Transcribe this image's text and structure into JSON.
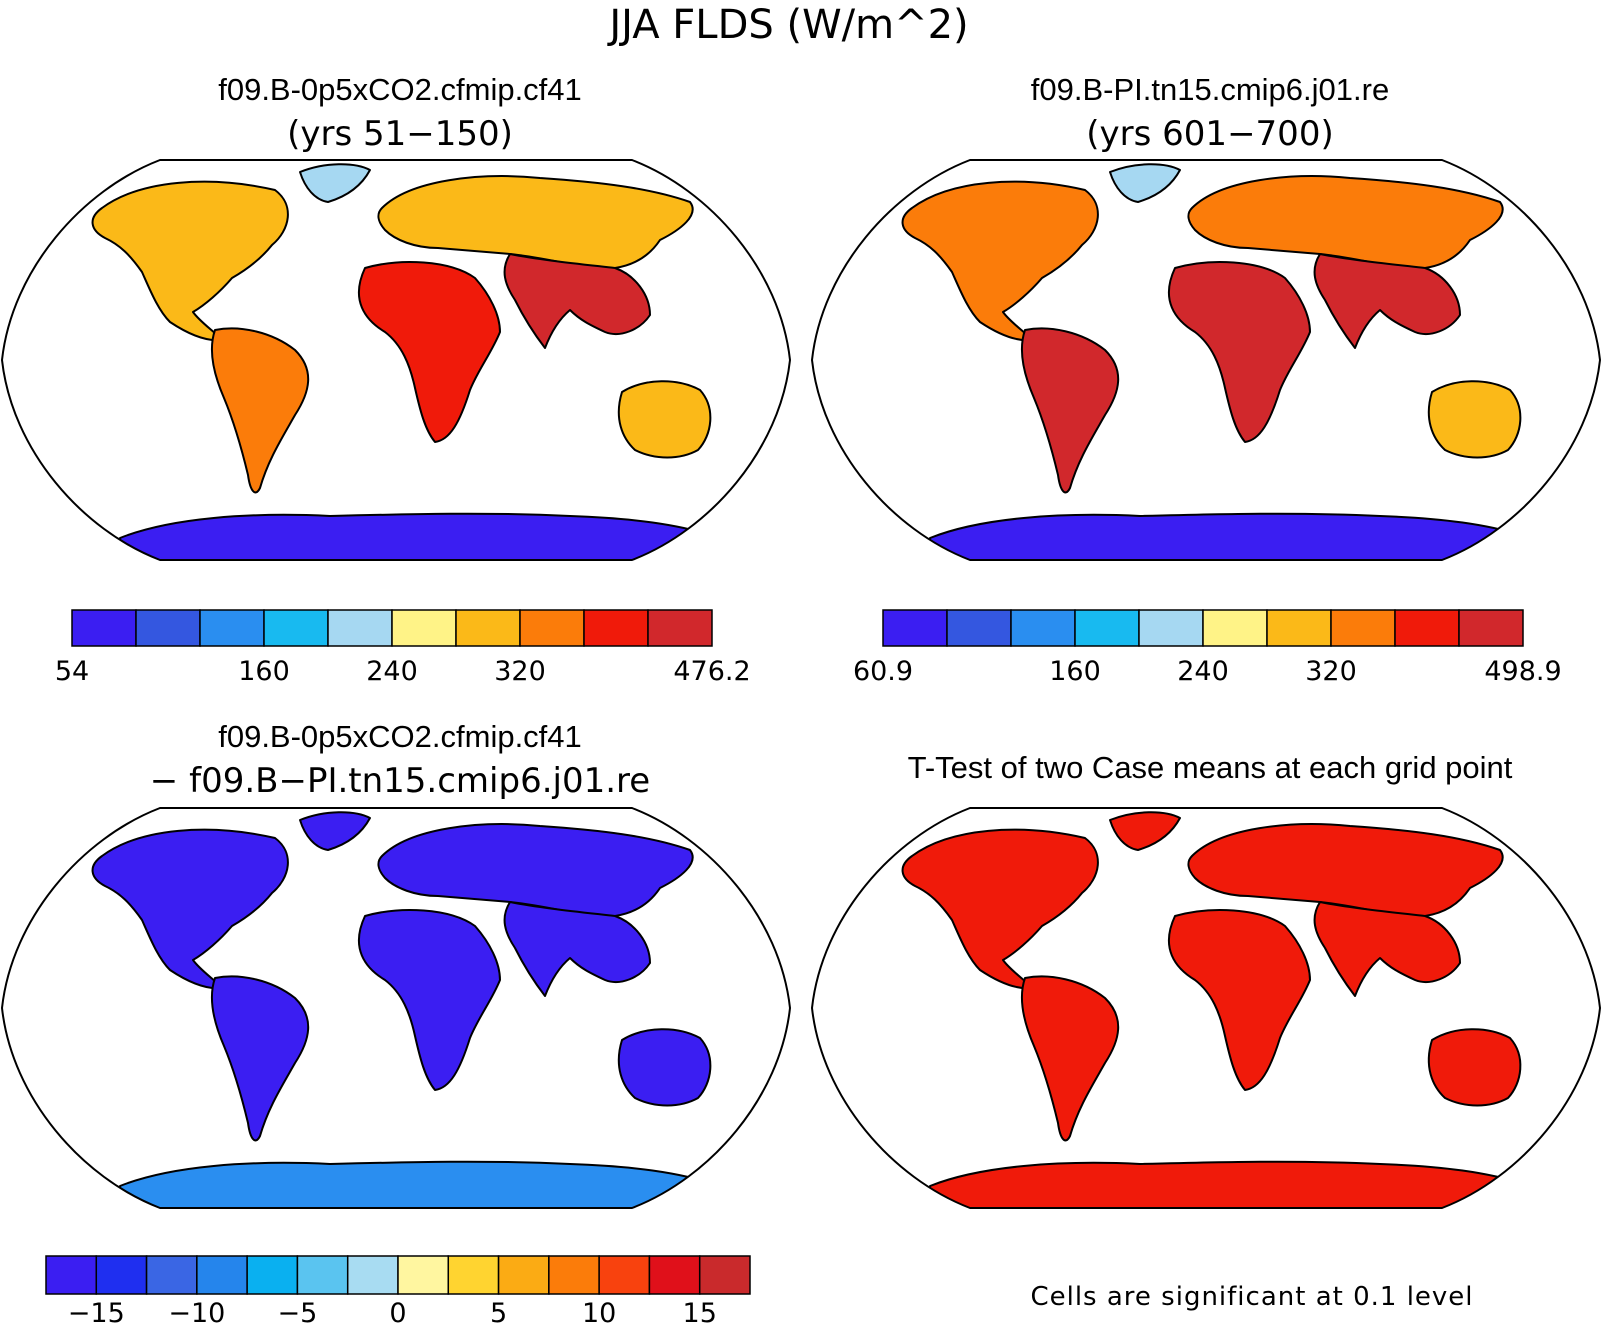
{
  "figure_title": "JJA FLDS (W/m^2)",
  "panels": [
    {
      "title": "f09.B-0p5xCO2.cfmip.cf41",
      "subtitle": "(yrs 51−150)"
    },
    {
      "title": "f09.B-PI.tn15.cmip6.j01.re",
      "subtitle": "(yrs 601−700)"
    },
    {
      "title": "f09.B-0p5xCO2.cfmip.cf41",
      "subtitle": "− f09.B−PI.tn15.cmip6.j01.re"
    },
    {
      "title": "T-Test of two Case means at each grid point",
      "subtitle": ""
    }
  ],
  "colorbars": [
    {
      "colors": [
        "#3b1ef2",
        "#3457e0",
        "#2a8ef0",
        "#18baf0",
        "#a6d8f2",
        "#fff387",
        "#fbb918",
        "#fb7c0a",
        "#f01a0a",
        "#d1282c"
      ],
      "labels": [
        "54",
        "160",
        "240",
        "320",
        "476.2"
      ],
      "label_slots": [
        0,
        3,
        5,
        7,
        10
      ]
    },
    {
      "colors": [
        "#3b1ef2",
        "#3457e0",
        "#2a8ef0",
        "#18baf0",
        "#a6d8f2",
        "#fff387",
        "#fbb918",
        "#fb7c0a",
        "#f01a0a",
        "#d1282c"
      ],
      "labels": [
        "60.9",
        "160",
        "240",
        "320",
        "498.9"
      ],
      "label_slots": [
        0,
        3,
        5,
        7,
        10
      ]
    },
    {
      "colors": [
        "#3b1ef2",
        "#1f2ff0",
        "#3a66e4",
        "#2585ec",
        "#0ab0f0",
        "#5ac4f0",
        "#a8dcf2",
        "#fff6a0",
        "#ffd430",
        "#fbab14",
        "#fb7c0a",
        "#f8420e",
        "#e0101a",
        "#c92a2c"
      ],
      "labels": [
        "−15",
        "−10",
        "−5",
        "0",
        "5",
        "10",
        "15"
      ],
      "label_slots": [
        1,
        3,
        5,
        7,
        9,
        11,
        13
      ]
    }
  ],
  "significance_note": "Cells are significant at 0.1 level",
  "map_colors": {
    "case1": {
      "north_america": "#fbb918",
      "south_america": "#fb7c0a",
      "africa": "#f01a0a",
      "eurasia": "#fbb918",
      "south_asia": "#d1282c",
      "australia": "#fbb918",
      "greenland": "#a6d8f2",
      "antarctica": "#3b1ef2"
    },
    "case2": {
      "north_america": "#fb7c0a",
      "south_america": "#d1282c",
      "africa": "#d1282c",
      "eurasia": "#fb7c0a",
      "south_asia": "#d1282c",
      "australia": "#fbb918",
      "greenland": "#a6d8f2",
      "antarctica": "#3b1ef2"
    },
    "diff": {
      "north_america": "#3b1ef2",
      "south_america": "#3b1ef2",
      "africa": "#3b1ef2",
      "eurasia": "#3b1ef2",
      "south_asia": "#3b1ef2",
      "australia": "#3b1ef2",
      "greenland": "#3b1ef2",
      "antarctica": "#2a8ef0"
    },
    "ttest": {
      "north_america": "#f01a0a",
      "south_america": "#f01a0a",
      "africa": "#f01a0a",
      "eurasia": "#f01a0a",
      "south_asia": "#f01a0a",
      "australia": "#f01a0a",
      "greenland": "#f01a0a",
      "antarctica": "#f01a0a"
    }
  }
}
